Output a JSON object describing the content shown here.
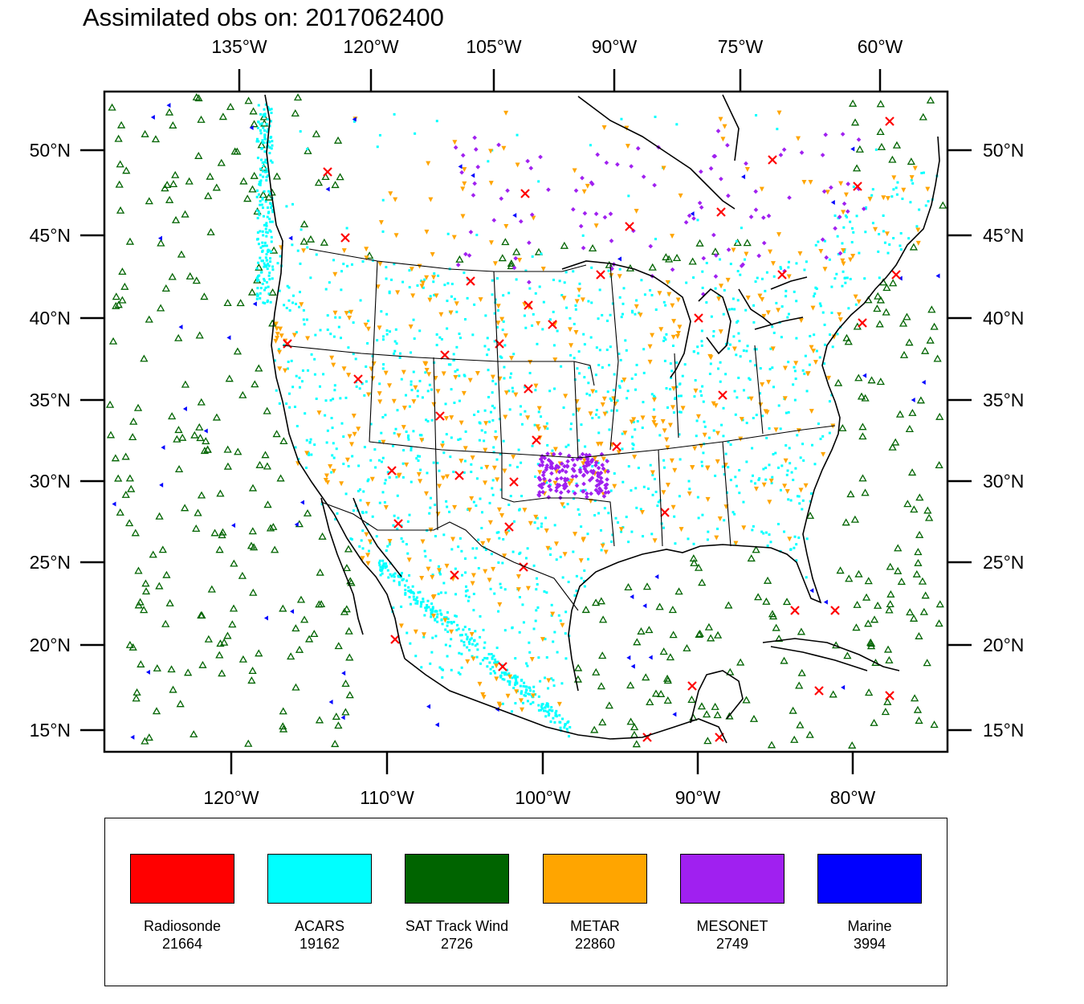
{
  "title": "Assimilated obs on: 2017062400",
  "top_axis": {
    "labels": [
      "135°W",
      "120°W",
      "105°W",
      "90°W",
      "75°W",
      "60°W"
    ]
  },
  "bottom_axis": {
    "labels": [
      "120°W",
      "110°W",
      "100°W",
      "90°W",
      "80°W"
    ]
  },
  "left_axis": {
    "labels": [
      "50°N",
      "45°N",
      "40°N",
      "35°N",
      "30°N",
      "25°N",
      "20°N",
      "15°N"
    ]
  },
  "right_axis": {
    "labels": [
      "50°N",
      "45°N",
      "40°N",
      "35°N",
      "30°N",
      "25°N",
      "20°N",
      "15°N"
    ]
  },
  "legend": [
    {
      "name": "Radiosonde",
      "count": "21664",
      "color": "#ff0000"
    },
    {
      "name": "ACARS",
      "count": "19162",
      "color": "#00ffff"
    },
    {
      "name": "SAT Track Wind",
      "count": "2726",
      "color": "#006400"
    },
    {
      "name": "METAR",
      "count": "22860",
      "color": "#ffa500"
    },
    {
      "name": "MESONET",
      "count": "2749",
      "color": "#a020f0"
    },
    {
      "name": "Marine",
      "count": "3994",
      "color": "#0000ff"
    }
  ]
}
